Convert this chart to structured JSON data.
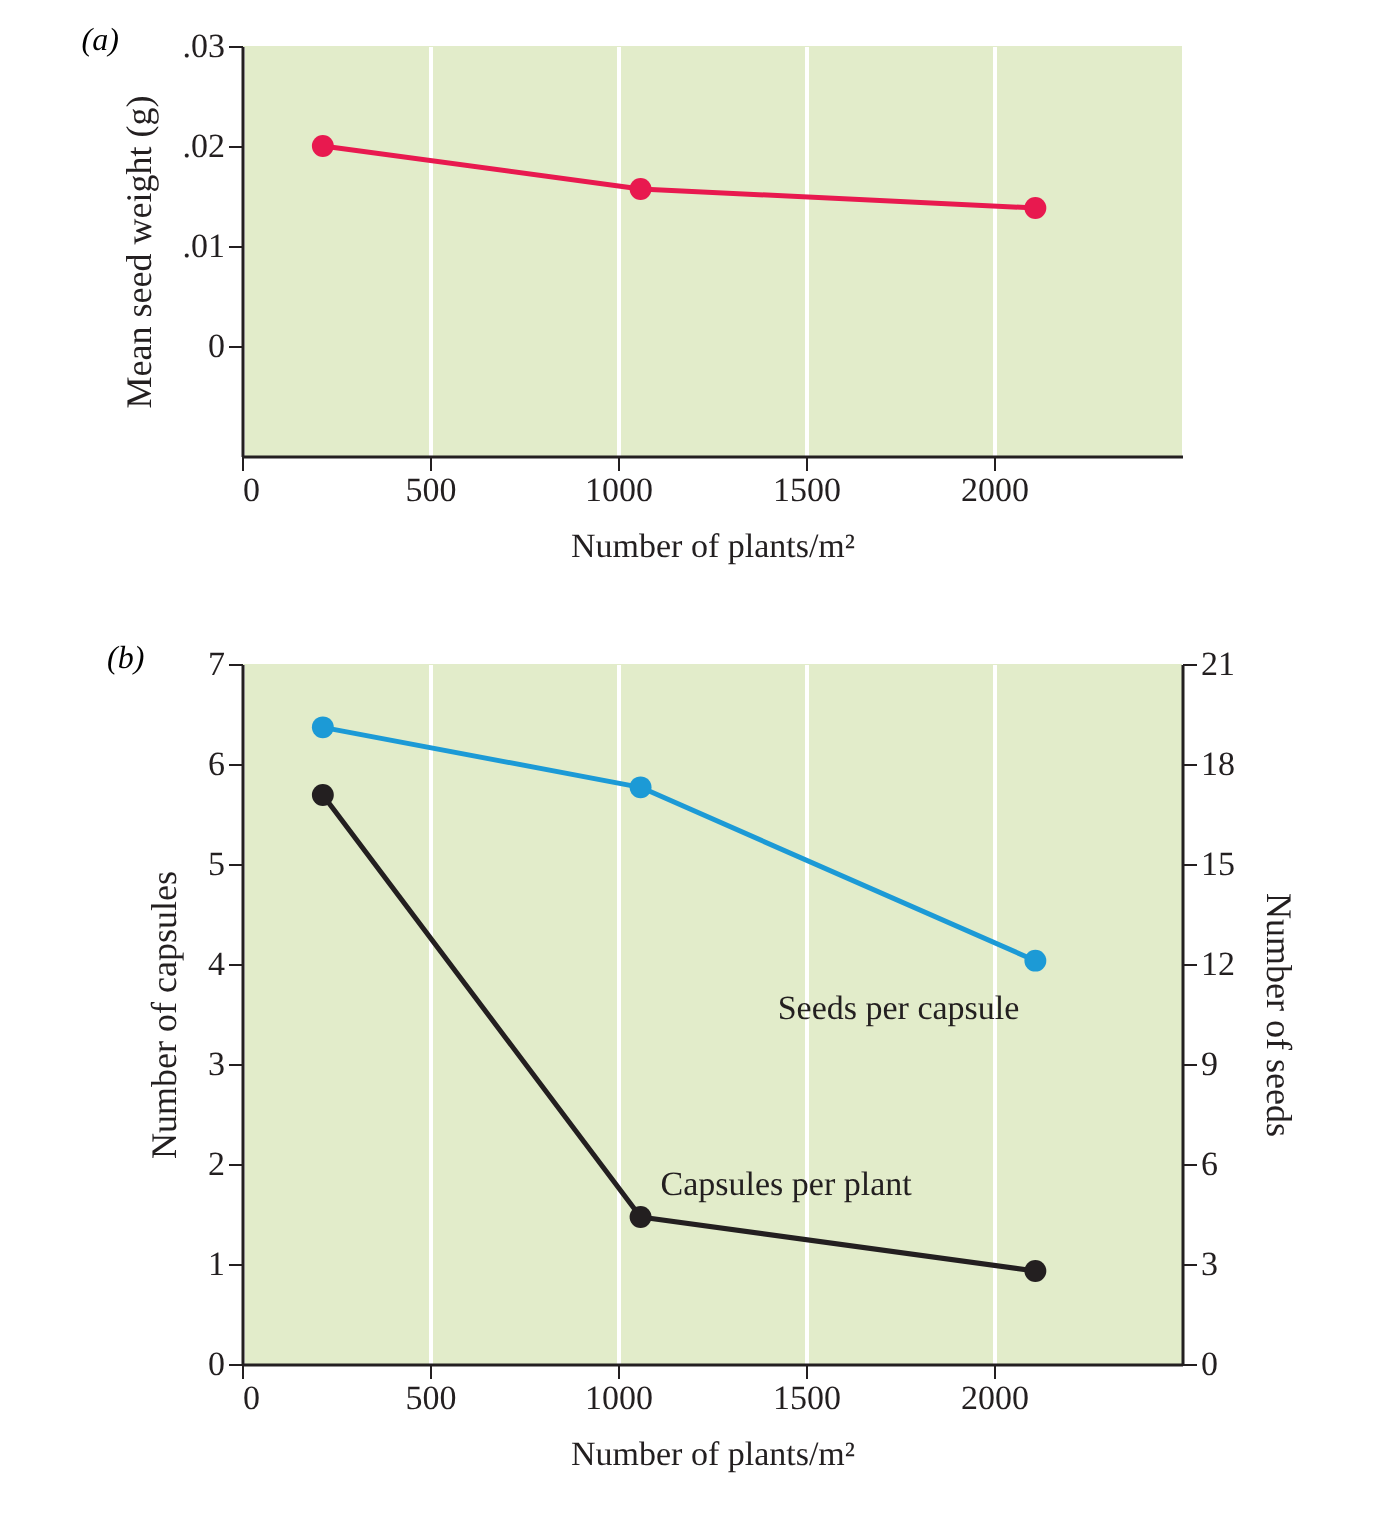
{
  "chart_data": [
    {
      "type": "line",
      "title": "(a)",
      "xlabel": "Number of plants/m²",
      "ylabel": "Mean seed weight (g)",
      "x": [
        215,
        1060,
        2110
      ],
      "series": [
        {
          "color": "#e8194f",
          "values": [
            0.02,
            0.0157,
            0.0138
          ]
        }
      ],
      "xlim": [
        0,
        2500
      ],
      "xticks": [
        0,
        500,
        1000,
        1500,
        2000
      ],
      "ylim": [
        -0.011,
        0.03
      ],
      "yticks": [
        {
          "value": 0,
          "label": "0"
        },
        {
          "value": 0.01,
          "label": ".01"
        },
        {
          "value": 0.02,
          "label": ".02"
        },
        {
          "value": 0.03,
          "label": ".03"
        }
      ],
      "grid": "x",
      "legend": false,
      "marker": "circle",
      "line_style": "solid"
    },
    {
      "type": "line",
      "title": "(b)",
      "xlabel": "Number of plants/m²",
      "ylabel": "Number of capsules",
      "y2label": "Number of seeds",
      "x": [
        215,
        1060,
        2110
      ],
      "series": [
        {
          "name": "Seeds per capsule",
          "color": "#1c9ad6",
          "axis": "y2",
          "values": [
            19.1,
            17.3,
            12.1
          ]
        },
        {
          "name": "Capsules per plant",
          "color": "#231f20",
          "values": [
            5.69,
            1.47,
            0.93
          ]
        }
      ],
      "xlim": [
        0,
        2500
      ],
      "xticks": [
        0,
        500,
        1000,
        1500,
        2000
      ],
      "ylim": [
        0,
        7
      ],
      "yticks": [
        0,
        1,
        2,
        3,
        4,
        5,
        6,
        7
      ],
      "y2lim": [
        0,
        21
      ],
      "y2ticks": [
        0,
        3,
        6,
        9,
        12,
        15,
        18,
        21
      ],
      "grid": "x",
      "legend": false,
      "marker": "circle",
      "line_style": "solid"
    }
  ]
}
